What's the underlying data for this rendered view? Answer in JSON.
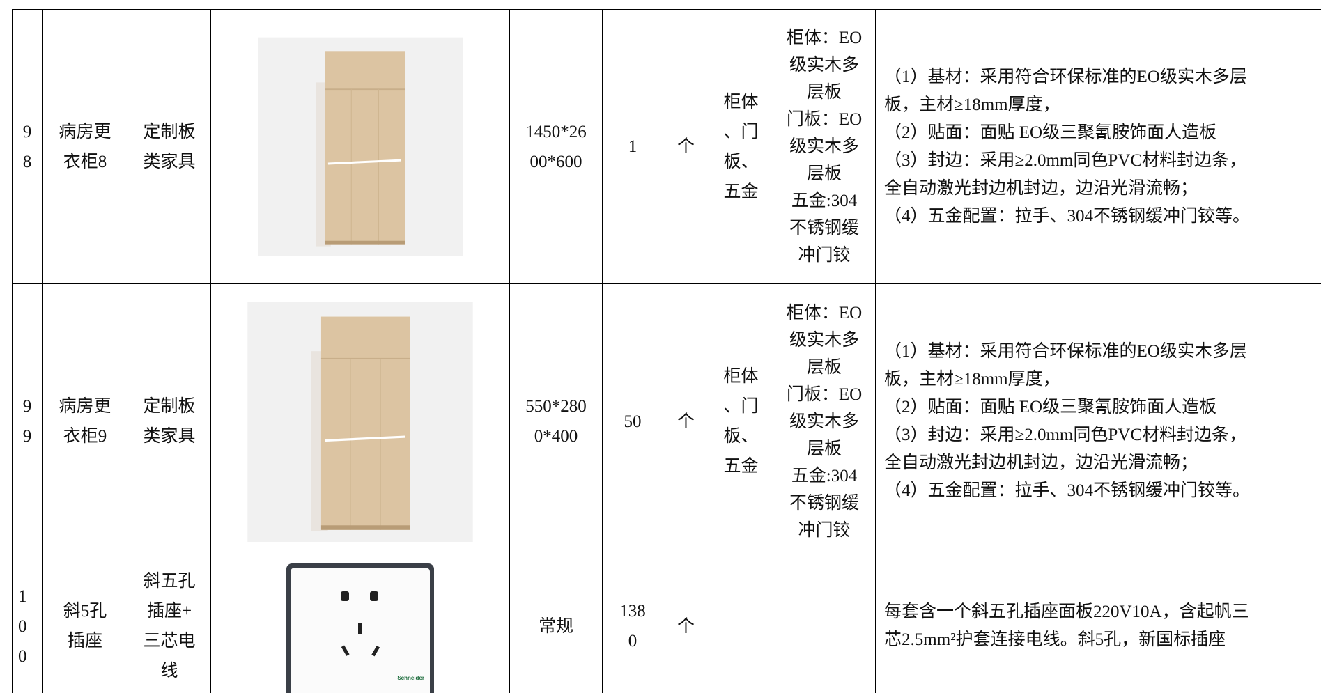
{
  "table": {
    "rows": [
      {
        "no": [
          "9",
          "8"
        ],
        "name": [
          "病房更",
          "衣柜8"
        ],
        "category": [
          "定制板",
          "类家具"
        ],
        "spec": [
          "1450*26",
          "00*600"
        ],
        "qty": [
          "1"
        ],
        "unit": [
          "个"
        ],
        "composition": [
          "柜体",
          "、门",
          "板、",
          "五金"
        ],
        "material": [
          "柜体：EO",
          "级实木多",
          "层板",
          "门板：EO",
          "级实木多",
          "层板",
          "五金:304",
          "不锈钢缓",
          "冲门铰"
        ],
        "description": [
          "（1）基材：采用符合环保标准的EO级实木多层",
          "板，主材≥18mm厚度，",
          "（2）贴面：面贴 EO级三聚氰胺饰面人造板",
          "（3）封边：采用≥2.0mm同色PVC材料封边条，",
          "全自动激光封边机封边，边沿光滑流畅；",
          "（4）五金配置：拉手、304不锈钢缓冲门铰等。"
        ]
      },
      {
        "no": [
          "9",
          "9"
        ],
        "name": [
          "病房更",
          "衣柜9"
        ],
        "category": [
          "定制板",
          "类家具"
        ],
        "spec": [
          "550*280",
          "0*400"
        ],
        "qty": [
          "50"
        ],
        "unit": [
          "个"
        ],
        "composition": [
          "柜体",
          "、门",
          "板、",
          "五金"
        ],
        "material": [
          "柜体：EO",
          "级实木多",
          "层板",
          "门板：EO",
          "级实木多",
          "层板",
          "五金:304",
          "不锈钢缓",
          "冲门铰"
        ],
        "description": [
          "（1）基材：采用符合环保标准的EO级实木多层",
          "板，主材≥18mm厚度，",
          "（2）贴面：面贴 EO级三聚氰胺饰面人造板",
          "（3）封边：采用≥2.0mm同色PVC材料封边条，",
          "全自动激光封边机封边，边沿光滑流畅；",
          "（4）五金配置：拉手、304不锈钢缓冲门铰等。"
        ]
      },
      {
        "no": [
          "1",
          "0",
          "0"
        ],
        "name": [
          "斜5孔",
          "插座"
        ],
        "category": [
          "斜五孔",
          "插座+",
          "三芯电",
          "线"
        ],
        "image_label": "Schneider",
        "spec": [
          "常规"
        ],
        "qty": [
          "138",
          "0"
        ],
        "unit": [
          "个"
        ],
        "description": [
          "每套含一个斜五孔插座面板220V10A，含起帆三",
          "芯2.5mm²护套连接电线。斜5孔，新国标插座"
        ]
      }
    ]
  }
}
